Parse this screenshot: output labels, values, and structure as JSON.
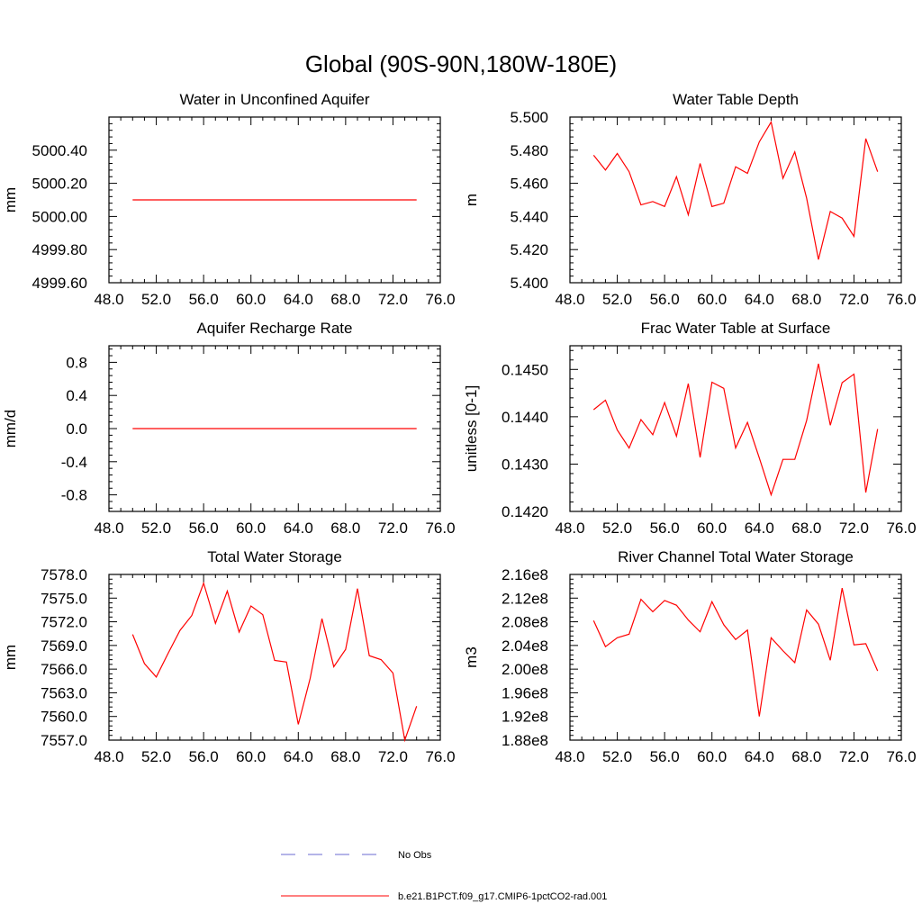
{
  "main_title": "Global (90S-90N,180W-180E)",
  "line_color": "#ff0000",
  "obs_color": "#6a6ad0",
  "legend": {
    "items": [
      {
        "label": "No Obs",
        "style": "dashed",
        "color": "#6a6ad0"
      },
      {
        "label": "b.e21.B1PCT.f09_g17.CMIP6-1pctCO2-rad.001",
        "style": "solid",
        "color": "#ff0000"
      }
    ]
  },
  "chart_data": [
    {
      "type": "line",
      "title": "Water in Unconfined Aquifer",
      "ylabel": "mm",
      "xlim": [
        48,
        76
      ],
      "ylim": [
        4999.6,
        5000.6
      ],
      "xticks": [
        "48.0",
        "52.0",
        "56.0",
        "60.0",
        "64.0",
        "68.0",
        "72.0",
        "76.0"
      ],
      "xtick_values": [
        48,
        52,
        56,
        60,
        64,
        68,
        72,
        76
      ],
      "yticks": [
        "4999.60",
        "4999.80",
        "5000.00",
        "5000.20",
        "5000.40"
      ],
      "ytick_values": [
        4999.6,
        4999.8,
        5000.0,
        5000.2,
        5000.4
      ],
      "x": [
        50,
        51,
        52,
        53,
        54,
        55,
        56,
        57,
        58,
        59,
        60,
        61,
        62,
        63,
        64,
        65,
        66,
        67,
        68,
        69,
        70,
        71,
        72,
        73,
        74
      ],
      "y": [
        5000.1,
        5000.1,
        5000.1,
        5000.1,
        5000.1,
        5000.1,
        5000.1,
        5000.1,
        5000.1,
        5000.1,
        5000.1,
        5000.1,
        5000.1,
        5000.1,
        5000.1,
        5000.1,
        5000.1,
        5000.1,
        5000.1,
        5000.1,
        5000.1,
        5000.1,
        5000.1,
        5000.1,
        5000.1
      ]
    },
    {
      "type": "line",
      "title": "Water Table Depth",
      "ylabel": "m",
      "xlim": [
        48,
        76
      ],
      "ylim": [
        5.4,
        5.5
      ],
      "xticks": [
        "48.0",
        "52.0",
        "56.0",
        "60.0",
        "64.0",
        "68.0",
        "72.0",
        "76.0"
      ],
      "xtick_values": [
        48,
        52,
        56,
        60,
        64,
        68,
        72,
        76
      ],
      "yticks": [
        "5.400",
        "5.420",
        "5.440",
        "5.460",
        "5.480",
        "5.500"
      ],
      "ytick_values": [
        5.4,
        5.42,
        5.44,
        5.46,
        5.48,
        5.5
      ],
      "x": [
        50,
        51,
        52,
        53,
        54,
        55,
        56,
        57,
        58,
        59,
        60,
        61,
        62,
        63,
        64,
        65,
        66,
        67,
        68,
        69,
        70,
        71,
        72,
        73,
        74
      ],
      "y": [
        5.477,
        5.468,
        5.478,
        5.467,
        5.447,
        5.449,
        5.446,
        5.464,
        5.441,
        5.472,
        5.446,
        5.448,
        5.47,
        5.466,
        5.485,
        5.497,
        5.463,
        5.479,
        5.451,
        5.414,
        5.443,
        5.439,
        5.428,
        5.487,
        5.467
      ]
    },
    {
      "type": "line",
      "title": "Aquifer Recharge Rate",
      "ylabel": "mm/d",
      "xlim": [
        48,
        76
      ],
      "ylim": [
        -1.0,
        1.0
      ],
      "xticks": [
        "48.0",
        "52.0",
        "56.0",
        "60.0",
        "64.0",
        "68.0",
        "72.0",
        "76.0"
      ],
      "xtick_values": [
        48,
        52,
        56,
        60,
        64,
        68,
        72,
        76
      ],
      "yticks": [
        "-0.8",
        "-0.4",
        "0.0",
        "0.4",
        "0.8"
      ],
      "ytick_values": [
        -0.8,
        -0.4,
        0.0,
        0.4,
        0.8
      ],
      "x": [
        50,
        51,
        52,
        53,
        54,
        55,
        56,
        57,
        58,
        59,
        60,
        61,
        62,
        63,
        64,
        65,
        66,
        67,
        68,
        69,
        70,
        71,
        72,
        73,
        74
      ],
      "y": [
        0,
        0,
        0,
        0,
        0,
        0,
        0,
        0,
        0,
        0,
        0,
        0,
        0,
        0,
        0,
        0,
        0,
        0,
        0,
        0,
        0,
        0,
        0,
        0,
        0
      ]
    },
    {
      "type": "line",
      "title": "Frac Water Table at Surface",
      "ylabel": "unitless [0-1]",
      "xlim": [
        48,
        76
      ],
      "ylim": [
        0.142,
        0.1455
      ],
      "xticks": [
        "48.0",
        "52.0",
        "56.0",
        "60.0",
        "64.0",
        "68.0",
        "72.0",
        "76.0"
      ],
      "xtick_values": [
        48,
        52,
        56,
        60,
        64,
        68,
        72,
        76
      ],
      "yticks": [
        "0.1420",
        "0.1430",
        "0.1440",
        "0.1450"
      ],
      "ytick_values": [
        0.142,
        0.143,
        0.144,
        0.145
      ],
      "x": [
        50,
        51,
        52,
        53,
        54,
        55,
        56,
        57,
        58,
        59,
        60,
        61,
        62,
        63,
        64,
        65,
        66,
        67,
        68,
        69,
        70,
        71,
        72,
        73,
        74
      ],
      "y": [
        0.14415,
        0.14435,
        0.14372,
        0.14334,
        0.14394,
        0.14362,
        0.1443,
        0.14359,
        0.1447,
        0.14314,
        0.14473,
        0.1446,
        0.14334,
        0.14388,
        0.14313,
        0.14235,
        0.1431,
        0.1431,
        0.14392,
        0.14512,
        0.14382,
        0.14472,
        0.1449,
        0.1424,
        0.14374
      ]
    },
    {
      "type": "line",
      "title": "Total Water Storage",
      "ylabel": "mm",
      "xlim": [
        48,
        76
      ],
      "ylim": [
        7557.0,
        7578.0
      ],
      "xticks": [
        "48.0",
        "52.0",
        "56.0",
        "60.0",
        "64.0",
        "68.0",
        "72.0",
        "76.0"
      ],
      "xtick_values": [
        48,
        52,
        56,
        60,
        64,
        68,
        72,
        76
      ],
      "yticks": [
        "7557.0",
        "7560.0",
        "7563.0",
        "7566.0",
        "7569.0",
        "7572.0",
        "7575.0",
        "7578.0"
      ],
      "ytick_values": [
        7557,
        7560,
        7563,
        7566,
        7569,
        7572,
        7575,
        7578
      ],
      "x": [
        50,
        51,
        52,
        53,
        54,
        55,
        56,
        57,
        58,
        59,
        60,
        61,
        62,
        63,
        64,
        65,
        66,
        67,
        68,
        69,
        70,
        71,
        72,
        73,
        74
      ],
      "y": [
        7570.4,
        7566.7,
        7565.0,
        7568.0,
        7570.9,
        7572.8,
        7576.9,
        7571.8,
        7575.9,
        7570.7,
        7574.0,
        7572.9,
        7567.1,
        7566.9,
        7559.0,
        7564.8,
        7572.4,
        7566.3,
        7568.5,
        7576.2,
        7567.7,
        7567.2,
        7565.5,
        7557.0,
        7561.3
      ]
    },
    {
      "type": "line",
      "title": "River Channel Total Water Storage",
      "ylabel": "m3",
      "xlim": [
        48,
        76
      ],
      "ylim": [
        188000000.0,
        216000000.0
      ],
      "xticks": [
        "48.0",
        "52.0",
        "56.0",
        "60.0",
        "64.0",
        "68.0",
        "72.0",
        "76.0"
      ],
      "xtick_values": [
        48,
        52,
        56,
        60,
        64,
        68,
        72,
        76
      ],
      "yticks": [
        "1.88e8",
        "1.92e8",
        "1.96e8",
        "2.00e8",
        "2.04e8",
        "2.08e8",
        "2.12e8",
        "2.16e8"
      ],
      "ytick_values": [
        188000000.0,
        192000000.0,
        196000000.0,
        200000000.0,
        204000000.0,
        208000000.0,
        212000000.0,
        216000000.0
      ],
      "x": [
        50,
        51,
        52,
        53,
        54,
        55,
        56,
        57,
        58,
        59,
        60,
        61,
        62,
        63,
        64,
        65,
        66,
        67,
        68,
        69,
        70,
        71,
        72,
        73,
        74
      ],
      "y": [
        208200000.0,
        203800000.0,
        205300000.0,
        205900000.0,
        211800000.0,
        209700000.0,
        211600000.0,
        210800000.0,
        208300000.0,
        206300000.0,
        211400000.0,
        207500000.0,
        205000000.0,
        206600000.0,
        192000000.0,
        205300000.0,
        203100000.0,
        201100000.0,
        210000000.0,
        207600000.0,
        201500000.0,
        213700000.0,
        204100000.0,
        204300000.0,
        199700000.0
      ]
    }
  ]
}
